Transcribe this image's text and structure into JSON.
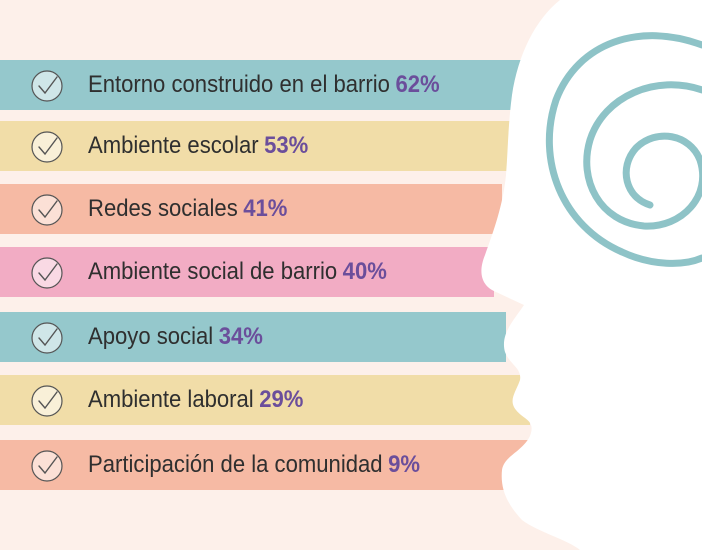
{
  "colors": {
    "background": "#fdf0ea",
    "teal": "#95c8cc",
    "yellow": "#f1dda8",
    "peach": "#f6baa4",
    "pink": "#f2acc4",
    "percent": "#6b4e9b",
    "spiral": "#8ec3c7"
  },
  "factors": [
    {
      "label": "Entorno construido en el barrio",
      "percent": "62%",
      "value": 62,
      "color": "teal",
      "icon": "check-circle-icon"
    },
    {
      "label": "Ambiente escolar",
      "percent": "53%",
      "value": 53,
      "color": "yellow",
      "icon": "check-circle-icon"
    },
    {
      "label": "Redes sociales",
      "percent": "41%",
      "value": 41,
      "color": "peach",
      "icon": "check-circle-icon"
    },
    {
      "label": "Ambiente social de barrio",
      "percent": "40%",
      "value": 40,
      "color": "pink",
      "icon": "check-circle-icon"
    },
    {
      "label": "Apoyo social",
      "percent": "34%",
      "value": 34,
      "color": "teal",
      "icon": "check-circle-icon"
    },
    {
      "label": "Ambiente laboral",
      "percent": "29%",
      "value": 29,
      "color": "yellow",
      "icon": "check-circle-icon"
    },
    {
      "label": "Participación de la comunidad",
      "percent": "9%",
      "value": 9,
      "color": "peach",
      "icon": "check-circle-icon"
    }
  ],
  "decoration": {
    "icon": "head-spiral-icon"
  }
}
